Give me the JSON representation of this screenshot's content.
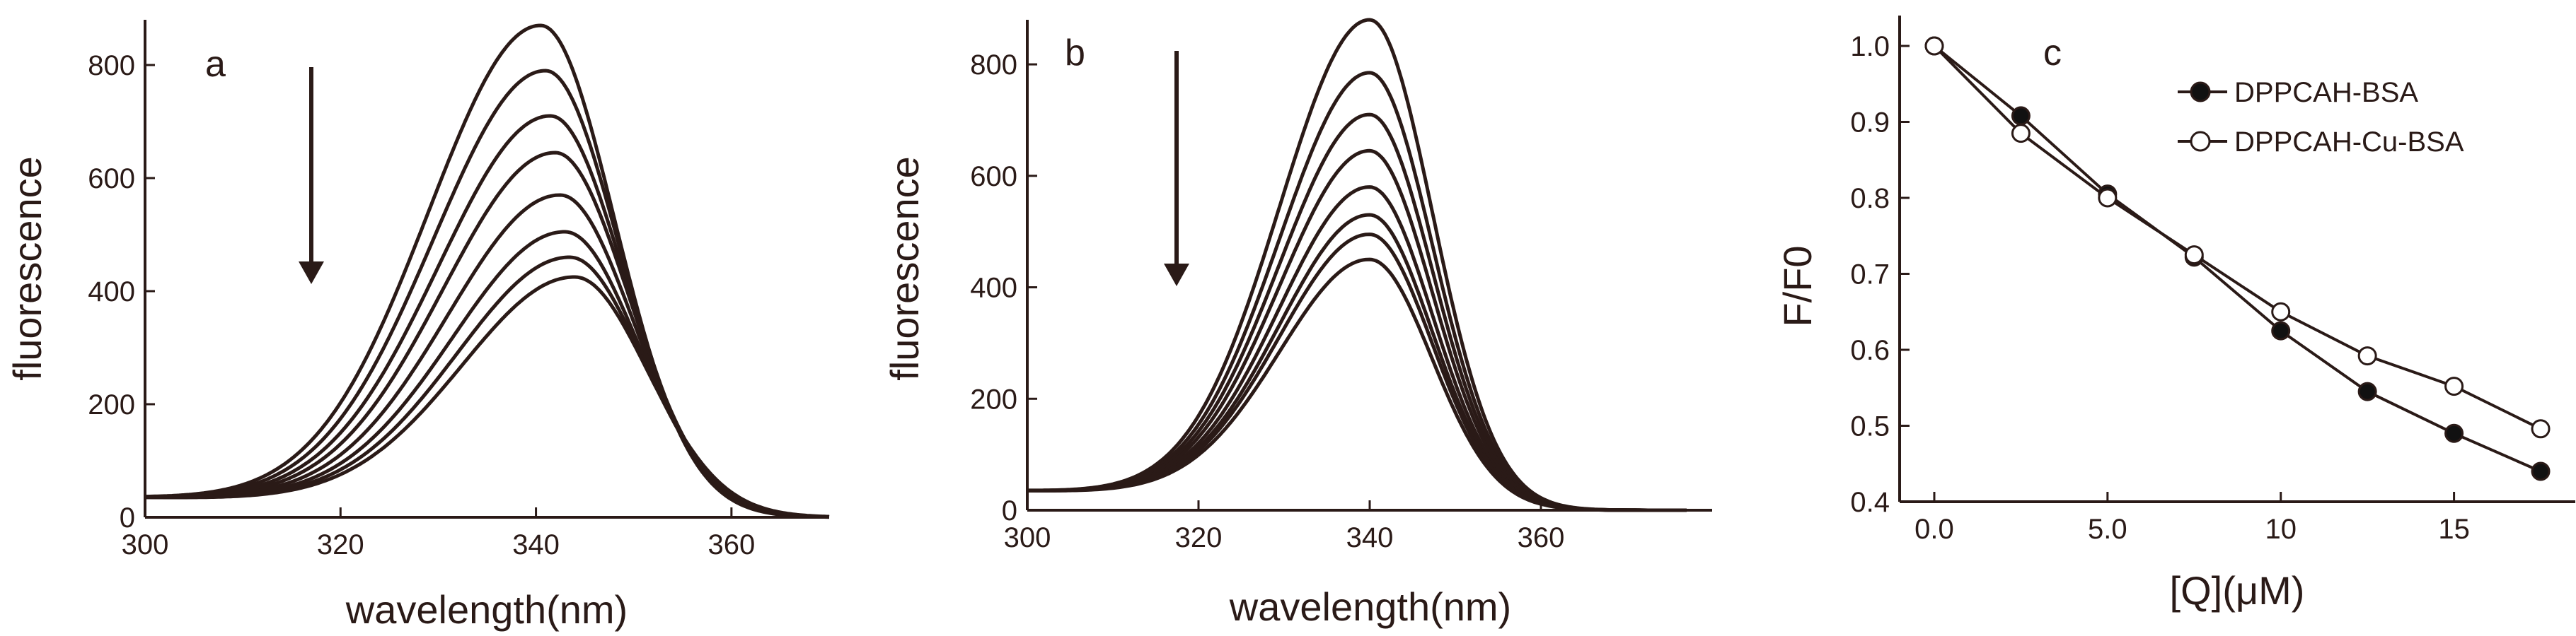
{
  "chart_data": [
    {
      "type": "line",
      "panel": "a",
      "title": "",
      "xlabel": "wavelength(nm)",
      "ylabel": "fluorescence",
      "xlim": [
        300,
        370
      ],
      "ylim": [
        0,
        880
      ],
      "xticks": [
        300,
        320,
        340,
        360
      ],
      "yticks": [
        0,
        200,
        400,
        600,
        800
      ],
      "xtick_labels": [
        "300",
        "320",
        "340",
        "360"
      ],
      "ytick_labels": [
        "0",
        "200",
        "400",
        "600",
        "800"
      ],
      "annotation": "arrow pointing down (decreasing intensity with added quencher)",
      "series": [
        {
          "name": "curve1",
          "peak_x": 340.5,
          "peak_y": 845,
          "values_note": "peak fluorescence ~845"
        },
        {
          "name": "curve2",
          "peak_x": 341,
          "peak_y": 765
        },
        {
          "name": "curve3",
          "peak_x": 341.5,
          "peak_y": 685
        },
        {
          "name": "curve4",
          "peak_x": 342,
          "peak_y": 620
        },
        {
          "name": "curve5",
          "peak_x": 342.5,
          "peak_y": 545
        },
        {
          "name": "curve6",
          "peak_x": 343,
          "peak_y": 480
        },
        {
          "name": "curve7",
          "peak_x": 343.5,
          "peak_y": 435
        },
        {
          "name": "curve8",
          "peak_x": 344,
          "peak_y": 400
        }
      ],
      "baseline_start": 35
    },
    {
      "type": "line",
      "panel": "b",
      "title": "",
      "xlabel": "wavelength(nm)",
      "ylabel": "fluorescence",
      "xlim": [
        300,
        380
      ],
      "ylim": [
        0,
        880
      ],
      "xticks": [
        300,
        320,
        340,
        360
      ],
      "yticks": [
        0,
        200,
        400,
        600,
        800
      ],
      "xtick_labels": [
        "300",
        "320",
        "340",
        "360"
      ],
      "ytick_labels": [
        "0",
        "200",
        "400",
        "600",
        "800"
      ],
      "annotation": "arrow pointing down (decreasing intensity with added quencher)",
      "series": [
        {
          "name": "curve1",
          "peak_x": 340,
          "peak_y": 855
        },
        {
          "name": "curve2",
          "peak_x": 340,
          "peak_y": 760
        },
        {
          "name": "curve3",
          "peak_x": 340,
          "peak_y": 685
        },
        {
          "name": "curve4",
          "peak_x": 340,
          "peak_y": 620
        },
        {
          "name": "curve5",
          "peak_x": 340,
          "peak_y": 555
        },
        {
          "name": "curve6",
          "peak_x": 340,
          "peak_y": 505
        },
        {
          "name": "curve7",
          "peak_x": 340,
          "peak_y": 470
        },
        {
          "name": "curve8",
          "peak_x": 340,
          "peak_y": 425
        }
      ],
      "baseline_start": 35
    },
    {
      "type": "line",
      "panel": "c",
      "title": "",
      "xlabel": "[Q](μM)",
      "ylabel": "F/F0",
      "xlim": [
        -1,
        18.5
      ],
      "ylim": [
        0.4,
        1.04
      ],
      "xticks": [
        0,
        5,
        10,
        15
      ],
      "yticks": [
        0.4,
        0.5,
        0.6,
        0.7,
        0.8,
        0.9,
        1.0
      ],
      "xtick_labels": [
        "0.0",
        "5.0",
        "10",
        "15"
      ],
      "ytick_labels": [
        "0.4",
        "0.5",
        "0.6",
        "0.7",
        "0.8",
        "0.9",
        "1.0"
      ],
      "legend_position": "top-right",
      "x": [
        0,
        2.5,
        5,
        7.5,
        10,
        12.5,
        15,
        17.5
      ],
      "series": [
        {
          "name": "DPPCAH-BSA",
          "marker": "filled-circle",
          "values": [
            1.0,
            0.908,
            0.805,
            0.722,
            0.625,
            0.545,
            0.49,
            0.44
          ]
        },
        {
          "name": "DPPCAH-Cu-BSA",
          "marker": "open-circle",
          "values": [
            1.0,
            0.885,
            0.8,
            0.725,
            0.65,
            0.592,
            0.552,
            0.496
          ]
        }
      ]
    }
  ]
}
